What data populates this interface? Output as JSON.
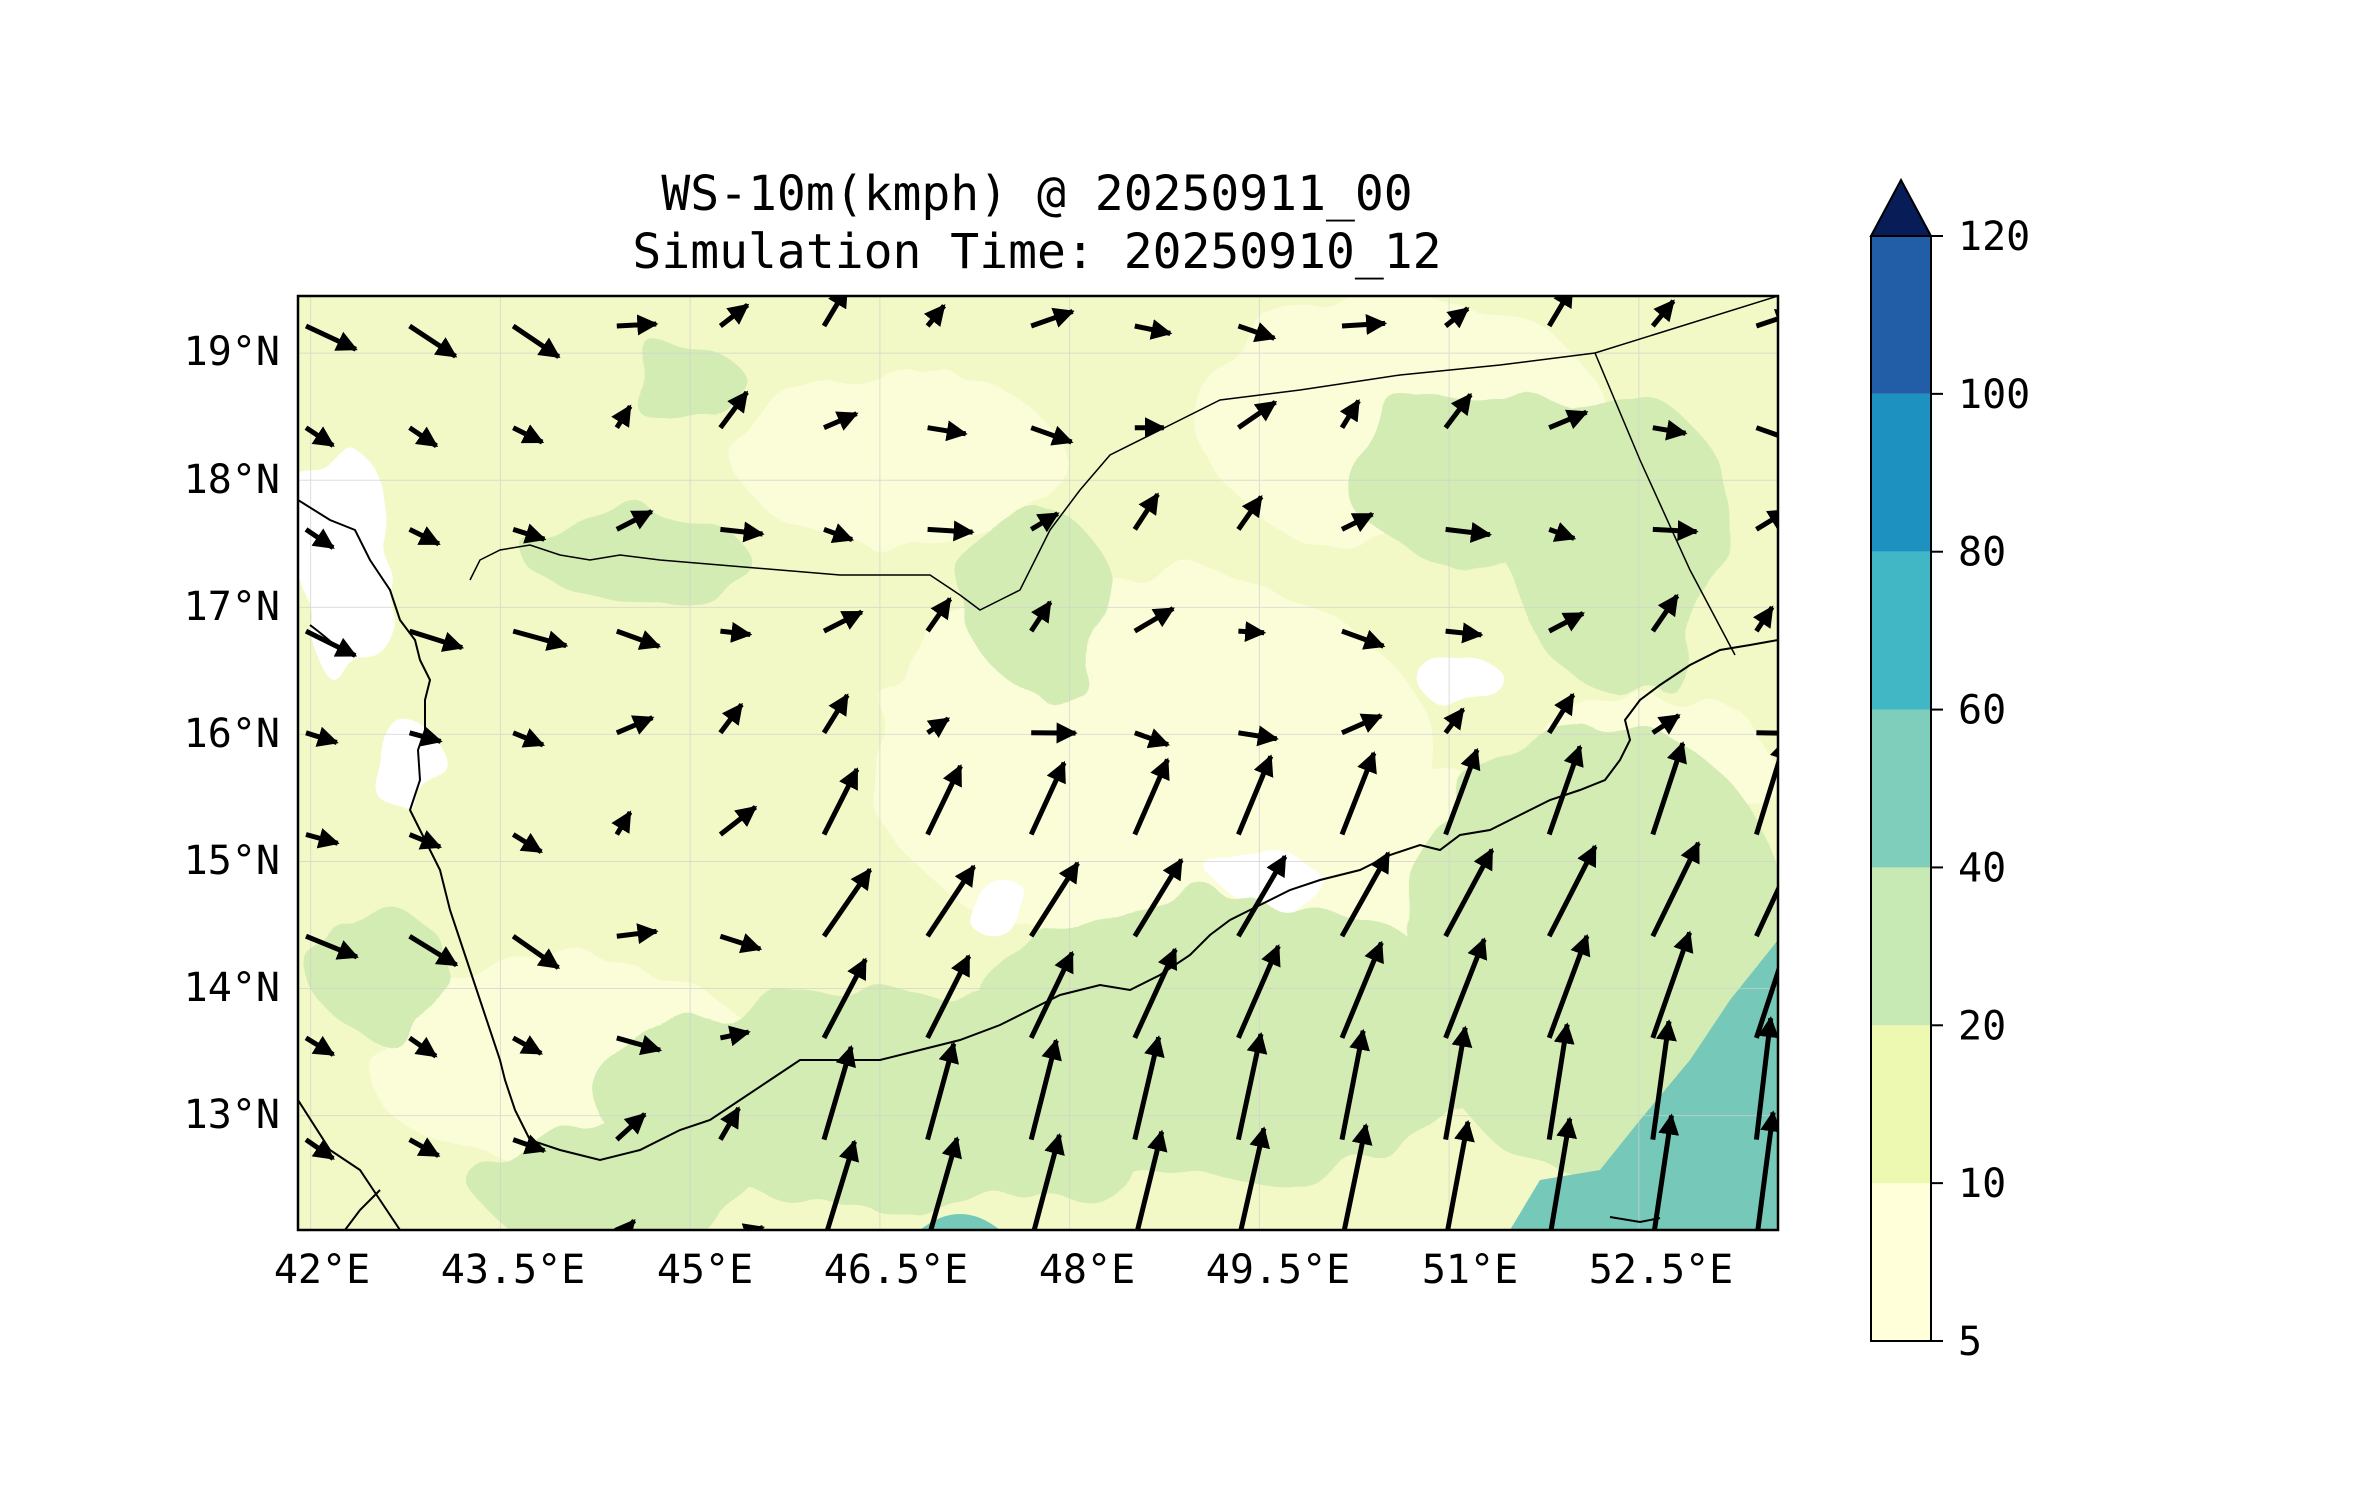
{
  "title_line1": "WS-10m(kmph) @ 20250911_00",
  "title_line2": "Simulation Time: 20250910_12",
  "x_ticks": [
    "42°E",
    "43.5°E",
    "45°E",
    "46.5°E",
    "48°E",
    "49.5°E",
    "51°E",
    "52.5°E"
  ],
  "y_ticks": [
    "19°N",
    "18°N",
    "17°N",
    "16°N",
    "15°N",
    "14°N",
    "13°N"
  ],
  "colorbar": {
    "ticks": [
      "5",
      "10",
      "20",
      "40",
      "60",
      "80",
      "100",
      "120"
    ],
    "colors": [
      "#ffffd9",
      "#edf8b1",
      "#c7e9b4",
      "#7fcdbb",
      "#41b6c4",
      "#1d91c0",
      "#225ea8",
      "#253494",
      "#081d58"
    ]
  },
  "chart_data": {
    "type": "heatmap",
    "title": "WS-10m(kmph) @ 20250911_00",
    "subtitle": "Simulation Time: 20250910_12",
    "variable": "10 m wind speed with wind vectors",
    "x_range": [
      41.9,
      53.6
    ],
    "y_range": [
      12.1,
      19.45
    ],
    "x_tick_values": [
      42,
      43.5,
      45,
      46.5,
      48,
      49.5,
      51,
      52.5
    ],
    "y_tick_values": [
      19,
      18,
      17,
      16,
      15,
      14,
      13
    ],
    "colorbar_levels": [
      5,
      10,
      20,
      40,
      60,
      80,
      100,
      120
    ],
    "colorbar_extend": "max",
    "colorbar_position": "right"
  }
}
